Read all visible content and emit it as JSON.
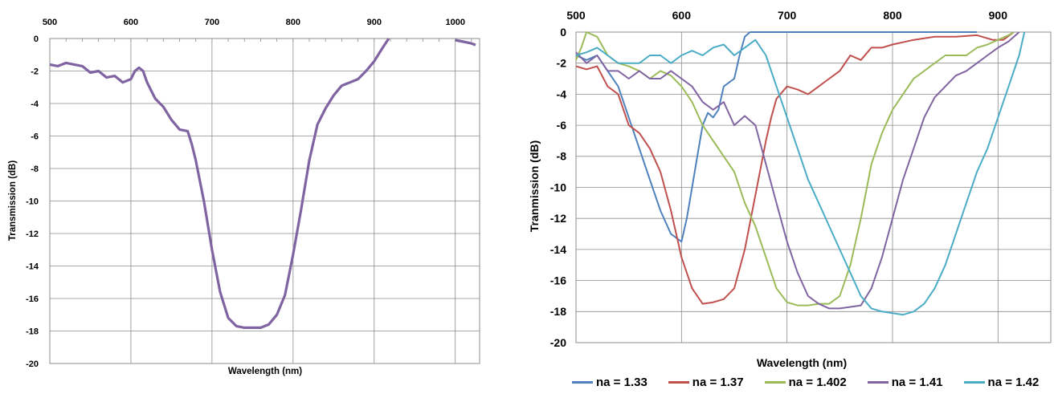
{
  "chart_data": [
    {
      "type": "line",
      "title": "",
      "xlabel": "Wavelength (nm)",
      "ylabel": "Transmission (dB)",
      "xlim": [
        500,
        1030
      ],
      "ylim": [
        -20,
        0
      ],
      "x_axis_position": "top",
      "x_ticks": [
        500,
        600,
        700,
        800,
        900,
        1000
      ],
      "x_tick_labels": [
        "500",
        "600",
        "700",
        "800",
        "900",
        "1000"
      ],
      "y_ticks": [
        0,
        -2,
        -4,
        -6,
        -8,
        -10,
        -12,
        -14,
        -16,
        -18,
        -20
      ],
      "y_tick_labels": [
        "0",
        "-2",
        "-4",
        "-6",
        "-8",
        "-10",
        "-12",
        "-14",
        "-16",
        "-18",
        "-20"
      ],
      "grid": true,
      "legend": "none",
      "series": [
        {
          "name": "",
          "color": "#8064A2",
          "segments": [
            [
              [
                500,
                -1.6
              ],
              [
                510,
                -1.7
              ],
              [
                520,
                -1.5
              ],
              [
                530,
                -1.6
              ],
              [
                540,
                -1.7
              ],
              [
                550,
                -2.1
              ],
              [
                560,
                -2.0
              ],
              [
                570,
                -2.4
              ],
              [
                580,
                -2.3
              ],
              [
                590,
                -2.7
              ],
              [
                600,
                -2.5
              ],
              [
                605,
                -2.0
              ],
              [
                610,
                -1.8
              ],
              [
                615,
                -2.0
              ],
              [
                620,
                -2.7
              ],
              [
                630,
                -3.7
              ],
              [
                640,
                -4.2
              ],
              [
                650,
                -5.0
              ],
              [
                660,
                -5.6
              ],
              [
                670,
                -5.7
              ],
              [
                675,
                -6.5
              ],
              [
                680,
                -7.5
              ],
              [
                690,
                -10.0
              ],
              [
                700,
                -13.0
              ],
              [
                710,
                -15.6
              ],
              [
                720,
                -17.2
              ],
              [
                730,
                -17.7
              ],
              [
                740,
                -17.8
              ],
              [
                750,
                -17.8
              ],
              [
                760,
                -17.8
              ],
              [
                770,
                -17.6
              ],
              [
                780,
                -17.0
              ],
              [
                790,
                -15.8
              ],
              [
                800,
                -13.3
              ],
              [
                810,
                -10.5
              ],
              [
                820,
                -7.5
              ],
              [
                830,
                -5.3
              ],
              [
                840,
                -4.3
              ],
              [
                850,
                -3.5
              ],
              [
                860,
                -2.9
              ],
              [
                870,
                -2.7
              ],
              [
                880,
                -2.5
              ],
              [
                890,
                -2.0
              ],
              [
                900,
                -1.4
              ],
              [
                910,
                -0.6
              ],
              [
                918,
                0.0
              ]
            ],
            [
              [
                1000,
                -0.1
              ],
              [
                1010,
                -0.2
              ],
              [
                1020,
                -0.3
              ],
              [
                1025,
                -0.4
              ]
            ]
          ]
        }
      ]
    },
    {
      "type": "line",
      "title": "",
      "xlabel": "Wavelength (nm)",
      "ylabel": "Tranmission (dB)",
      "xlim": [
        500,
        950
      ],
      "ylim": [
        -20,
        0
      ],
      "x_axis_position": "top",
      "x_ticks": [
        500,
        600,
        700,
        800,
        900
      ],
      "x_tick_labels": [
        "500",
        "600",
        "700",
        "800",
        "900"
      ],
      "y_ticks": [
        0,
        -2,
        -4,
        -6,
        -8,
        -10,
        -12,
        -14,
        -16,
        -18,
        -20
      ],
      "y_tick_labels": [
        "0",
        "-2",
        "-4",
        "-6",
        "-8",
        "-10",
        "-12",
        "-14",
        "-16",
        "-18",
        "-20"
      ],
      "grid": true,
      "legend": "bottom",
      "series": [
        {
          "name": "na = 1.33",
          "color": "#4F81BD",
          "points": [
            [
              500,
              -1.5
            ],
            [
              510,
              -1.8
            ],
            [
              520,
              -1.5
            ],
            [
              530,
              -2.5
            ],
            [
              540,
              -3.5
            ],
            [
              550,
              -5.5
            ],
            [
              560,
              -7.5
            ],
            [
              570,
              -9.5
            ],
            [
              580,
              -11.5
            ],
            [
              590,
              -13.0
            ],
            [
              600,
              -13.5
            ],
            [
              605,
              -12.0
            ],
            [
              610,
              -10.0
            ],
            [
              615,
              -8.0
            ],
            [
              620,
              -6.0
            ],
            [
              625,
              -5.2
            ],
            [
              630,
              -5.5
            ],
            [
              635,
              -5.0
            ],
            [
              640,
              -3.5
            ],
            [
              650,
              -3.0
            ],
            [
              655,
              -1.5
            ],
            [
              660,
              -0.3
            ],
            [
              665,
              0.0
            ],
            [
              700,
              0.0
            ],
            [
              750,
              0.0
            ],
            [
              800,
              0.0
            ],
            [
              850,
              0.0
            ],
            [
              880,
              0.0
            ]
          ]
        },
        {
          "name": "na = 1.37",
          "color": "#C0504D",
          "points": [
            [
              500,
              -2.2
            ],
            [
              510,
              -2.4
            ],
            [
              520,
              -2.2
            ],
            [
              530,
              -3.5
            ],
            [
              540,
              -4.0
            ],
            [
              550,
              -6.0
            ],
            [
              560,
              -6.5
            ],
            [
              570,
              -7.5
            ],
            [
              580,
              -9.0
            ],
            [
              590,
              -11.5
            ],
            [
              600,
              -14.5
            ],
            [
              610,
              -16.5
            ],
            [
              620,
              -17.5
            ],
            [
              630,
              -17.4
            ],
            [
              640,
              -17.2
            ],
            [
              650,
              -16.5
            ],
            [
              660,
              -14.0
            ],
            [
              670,
              -10.5
            ],
            [
              680,
              -7.0
            ],
            [
              685,
              -5.5
            ],
            [
              690,
              -4.3
            ],
            [
              700,
              -3.5
            ],
            [
              710,
              -3.7
            ],
            [
              720,
              -4.0
            ],
            [
              730,
              -3.5
            ],
            [
              740,
              -3.0
            ],
            [
              750,
              -2.5
            ],
            [
              760,
              -1.5
            ],
            [
              770,
              -1.8
            ],
            [
              780,
              -1.0
            ],
            [
              790,
              -1.0
            ],
            [
              800,
              -0.8
            ],
            [
              820,
              -0.5
            ],
            [
              840,
              -0.3
            ],
            [
              860,
              -0.3
            ],
            [
              880,
              -0.2
            ],
            [
              895,
              -0.5
            ],
            [
              905,
              -0.5
            ],
            [
              915,
              0.0
            ]
          ]
        },
        {
          "name": "na = 1.402",
          "color": "#9BBB59",
          "points": [
            [
              500,
              -1.8
            ],
            [
              505,
              -1.0
            ],
            [
              510,
              0.0
            ],
            [
              520,
              -0.3
            ],
            [
              530,
              -1.5
            ],
            [
              540,
              -2.0
            ],
            [
              550,
              -2.2
            ],
            [
              560,
              -2.5
            ],
            [
              570,
              -3.0
            ],
            [
              580,
              -2.5
            ],
            [
              590,
              -2.8
            ],
            [
              600,
              -3.5
            ],
            [
              610,
              -4.5
            ],
            [
              620,
              -6.0
            ],
            [
              630,
              -7.0
            ],
            [
              640,
              -8.0
            ],
            [
              650,
              -9.0
            ],
            [
              660,
              -11.0
            ],
            [
              670,
              -12.5
            ],
            [
              680,
              -14.5
            ],
            [
              690,
              -16.5
            ],
            [
              700,
              -17.4
            ],
            [
              710,
              -17.6
            ],
            [
              720,
              -17.6
            ],
            [
              730,
              -17.5
            ],
            [
              740,
              -17.5
            ],
            [
              750,
              -17.0
            ],
            [
              760,
              -15.0
            ],
            [
              770,
              -12.0
            ],
            [
              780,
              -8.5
            ],
            [
              790,
              -6.5
            ],
            [
              800,
              -5.0
            ],
            [
              810,
              -4.0
            ],
            [
              820,
              -3.0
            ],
            [
              830,
              -2.5
            ],
            [
              840,
              -2.0
            ],
            [
              850,
              -1.5
            ],
            [
              860,
              -1.5
            ],
            [
              870,
              -1.5
            ],
            [
              880,
              -1.0
            ],
            [
              890,
              -0.8
            ],
            [
              900,
              -0.5
            ],
            [
              910,
              -0.2
            ],
            [
              915,
              0.0
            ]
          ]
        },
        {
          "name": "na = 1.41",
          "color": "#8064A2",
          "points": [
            [
              500,
              -1.3
            ],
            [
              510,
              -2.0
            ],
            [
              520,
              -1.5
            ],
            [
              530,
              -2.5
            ],
            [
              540,
              -2.5
            ],
            [
              550,
              -3.0
            ],
            [
              560,
              -2.5
            ],
            [
              570,
              -3.0
            ],
            [
              580,
              -3.0
            ],
            [
              590,
              -2.5
            ],
            [
              600,
              -3.0
            ],
            [
              610,
              -3.5
            ],
            [
              620,
              -4.5
            ],
            [
              630,
              -5.0
            ],
            [
              640,
              -4.5
            ],
            [
              650,
              -6.0
            ],
            [
              660,
              -5.4
            ],
            [
              670,
              -6.0
            ],
            [
              680,
              -8.5
            ],
            [
              690,
              -11.0
            ],
            [
              700,
              -13.5
            ],
            [
              710,
              -15.5
            ],
            [
              720,
              -17.0
            ],
            [
              730,
              -17.5
            ],
            [
              740,
              -17.8
            ],
            [
              750,
              -17.8
            ],
            [
              760,
              -17.7
            ],
            [
              770,
              -17.6
            ],
            [
              780,
              -16.5
            ],
            [
              790,
              -14.5
            ],
            [
              800,
              -12.0
            ],
            [
              810,
              -9.5
            ],
            [
              820,
              -7.5
            ],
            [
              830,
              -5.5
            ],
            [
              840,
              -4.2
            ],
            [
              850,
              -3.5
            ],
            [
              860,
              -2.8
            ],
            [
              870,
              -2.5
            ],
            [
              880,
              -2.0
            ],
            [
              890,
              -1.5
            ],
            [
              900,
              -1.0
            ],
            [
              910,
              -0.6
            ],
            [
              920,
              0.0
            ]
          ]
        },
        {
          "name": "na = 1.42",
          "color": "#4BACC6",
          "points": [
            [
              500,
              -1.5
            ],
            [
              510,
              -1.3
            ],
            [
              520,
              -1.0
            ],
            [
              530,
              -1.5
            ],
            [
              540,
              -2.0
            ],
            [
              550,
              -2.0
            ],
            [
              560,
              -2.0
            ],
            [
              570,
              -1.5
            ],
            [
              580,
              -1.5
            ],
            [
              590,
              -2.0
            ],
            [
              600,
              -1.5
            ],
            [
              610,
              -1.2
            ],
            [
              620,
              -1.5
            ],
            [
              630,
              -1.0
            ],
            [
              640,
              -0.8
            ],
            [
              650,
              -1.5
            ],
            [
              660,
              -1.0
            ],
            [
              670,
              -0.5
            ],
            [
              680,
              -1.5
            ],
            [
              690,
              -3.5
            ],
            [
              700,
              -5.5
            ],
            [
              710,
              -7.5
            ],
            [
              720,
              -9.5
            ],
            [
              730,
              -11.0
            ],
            [
              740,
              -12.5
            ],
            [
              750,
              -14.0
            ],
            [
              760,
              -15.5
            ],
            [
              770,
              -17.0
            ],
            [
              780,
              -17.8
            ],
            [
              790,
              -18.0
            ],
            [
              800,
              -18.1
            ],
            [
              810,
              -18.2
            ],
            [
              820,
              -18.0
            ],
            [
              830,
              -17.5
            ],
            [
              840,
              -16.5
            ],
            [
              850,
              -15.0
            ],
            [
              860,
              -13.0
            ],
            [
              870,
              -11.0
            ],
            [
              880,
              -9.0
            ],
            [
              890,
              -7.5
            ],
            [
              900,
              -5.5
            ],
            [
              910,
              -3.5
            ],
            [
              920,
              -1.5
            ],
            [
              925,
              0.0
            ]
          ]
        }
      ]
    }
  ]
}
